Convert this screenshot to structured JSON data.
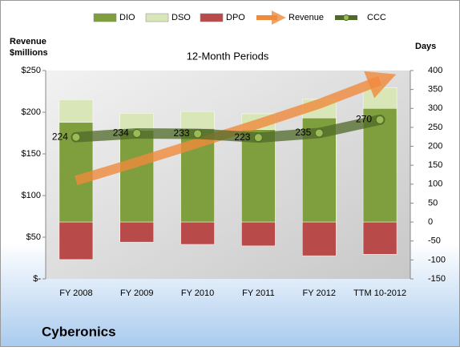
{
  "chart_data": {
    "type": "combo",
    "title": "Cyberonics",
    "subtitle": "12-Month Periods",
    "ylabel": [
      "Revenue",
      "$millions"
    ],
    "y2label": "Days",
    "categories": [
      "FY 2008",
      "FY 2009",
      "FY 2010",
      "FY 2011",
      "FY 2012",
      "TTM 10-2012"
    ],
    "ylim": [
      0,
      250
    ],
    "yticks": [
      {
        "value": 0,
        "label": "$-"
      },
      {
        "value": 50,
        "label": "$50"
      },
      {
        "value": 100,
        "label": "$100"
      },
      {
        "value": 150,
        "label": "$150"
      },
      {
        "value": 200,
        "label": "$200"
      },
      {
        "value": 250,
        "label": "$250"
      }
    ],
    "y2lim": [
      -150,
      400
    ],
    "y2ticks": [
      -150,
      -100,
      -50,
      0,
      50,
      100,
      150,
      200,
      250,
      300,
      350,
      400
    ],
    "series": [
      {
        "name": "DIO",
        "type": "bar",
        "axis": "y2",
        "color": "#7f9f3f",
        "values": [
          263,
          242,
          247,
          244,
          275,
          300
        ]
      },
      {
        "name": "DSO",
        "type": "bar",
        "axis": "y2",
        "color": "#d8e6b8",
        "values": [
          60,
          45,
          45,
          42,
          49,
          55
        ]
      },
      {
        "name": "DPO",
        "type": "bar",
        "axis": "y2",
        "color": "#b94a4a",
        "values": [
          -99,
          -53,
          -59,
          -63,
          -89,
          -85
        ]
      },
      {
        "name": "Revenue",
        "type": "arrow",
        "color": "#f08a3c",
        "values": [
          118,
          140,
          163,
          186,
          210,
          238
        ]
      },
      {
        "name": "CCC",
        "type": "line",
        "axis": "y2",
        "color": "#4f6a28",
        "values": [
          224,
          234,
          233,
          223,
          235,
          270
        ]
      }
    ]
  }
}
